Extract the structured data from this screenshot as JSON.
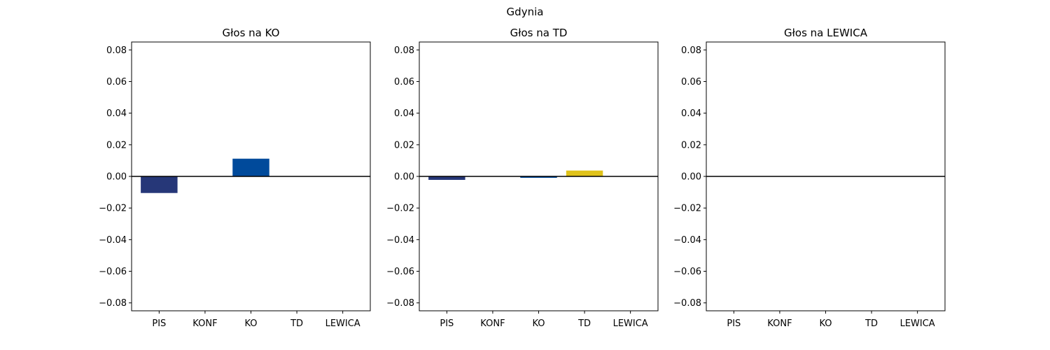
{
  "figure": {
    "suptitle": "Gdynia"
  },
  "colors": {
    "PIS": "#263778",
    "KONF": "#1b2a3a",
    "KO": "#004a9b",
    "TD": "#dfc21a",
    "LEWICA": "#b0123e",
    "axis": "#000000",
    "zero_line": "#000000"
  },
  "chart_data": [
    {
      "type": "bar",
      "title": "Głos na KO",
      "categories": [
        "PIS",
        "KONF",
        "KO",
        "TD",
        "LEWICA"
      ],
      "values": [
        -0.0105,
        0,
        0.0112,
        0,
        0
      ],
      "ylim": [
        -0.085,
        0.085
      ],
      "yticks": [
        -0.08,
        -0.06,
        -0.04,
        -0.02,
        0.0,
        0.02,
        0.04,
        0.06,
        0.08
      ],
      "ytick_labels": [
        "−0.08",
        "−0.06",
        "−0.04",
        "−0.02",
        "0.00",
        "0.02",
        "0.04",
        "0.06",
        "0.08"
      ],
      "zero_line": true,
      "grid": false
    },
    {
      "type": "bar",
      "title": "Głos na TD",
      "categories": [
        "PIS",
        "KONF",
        "KO",
        "TD",
        "LEWICA"
      ],
      "values": [
        -0.0022,
        0,
        -0.0009,
        0.0037,
        0
      ],
      "ylim": [
        -0.085,
        0.085
      ],
      "yticks": [
        -0.08,
        -0.06,
        -0.04,
        -0.02,
        0.0,
        0.02,
        0.04,
        0.06,
        0.08
      ],
      "ytick_labels": [
        "−0.08",
        "−0.06",
        "−0.04",
        "−0.02",
        "0.00",
        "0.02",
        "0.04",
        "0.06",
        "0.08"
      ],
      "zero_line": true,
      "grid": false
    },
    {
      "type": "bar",
      "title": "Głos na LEWICA",
      "categories": [
        "PIS",
        "KONF",
        "KO",
        "TD",
        "LEWICA"
      ],
      "values": [
        0,
        0,
        0,
        0,
        0
      ],
      "ylim": [
        -0.085,
        0.085
      ],
      "yticks": [
        -0.08,
        -0.06,
        -0.04,
        -0.02,
        0.0,
        0.02,
        0.04,
        0.06,
        0.08
      ],
      "ytick_labels": [
        "−0.08",
        "−0.06",
        "−0.04",
        "−0.02",
        "0.00",
        "0.02",
        "0.04",
        "0.06",
        "0.08"
      ],
      "zero_line": true,
      "grid": false
    }
  ]
}
